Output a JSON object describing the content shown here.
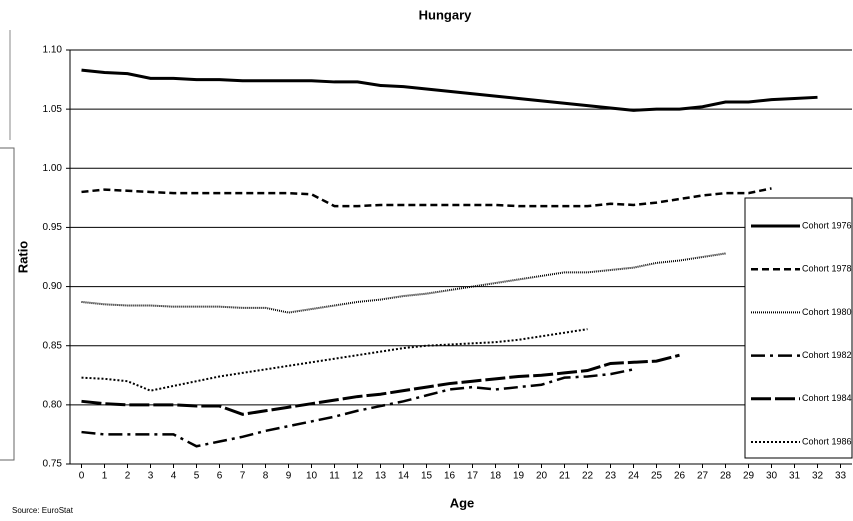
{
  "chart_data": {
    "type": "line",
    "title": "Hungary",
    "x_label": "Age",
    "y_label": "Ratio",
    "source": "Source: EuroStat",
    "x": [
      0,
      1,
      2,
      3,
      4,
      5,
      6,
      7,
      8,
      9,
      10,
      11,
      12,
      13,
      14,
      15,
      16,
      17,
      18,
      19,
      20,
      21,
      22,
      23,
      24,
      25,
      26,
      27,
      28,
      29,
      30,
      31,
      32,
      33
    ],
    "xlim": [
      -0.5,
      33.5
    ],
    "xticks": [
      0,
      1,
      2,
      3,
      4,
      5,
      6,
      7,
      8,
      9,
      10,
      11,
      12,
      13,
      14,
      15,
      16,
      17,
      18,
      19,
      20,
      21,
      22,
      23,
      24,
      25,
      26,
      27,
      28,
      29,
      30,
      31,
      32,
      33
    ],
    "ylim": [
      0.75,
      1.1
    ],
    "yticks": [
      {
        "value": 0.75,
        "label": "0.75"
      },
      {
        "value": 0.8,
        "label": "0.80"
      },
      {
        "value": 0.85,
        "label": "0.85"
      },
      {
        "value": 0.9,
        "label": "0.90"
      },
      {
        "value": 0.95,
        "label": "0.95"
      },
      {
        "value": 1.0,
        "label": "1.00"
      },
      {
        "value": 1.05,
        "label": "1.05"
      },
      {
        "value": 1.1,
        "label": "1.10"
      }
    ],
    "grid": true,
    "legend": "right",
    "series": [
      {
        "name": "Cohort 1976",
        "color": "#000000",
        "line_style": "solid-thick",
        "values": [
          1.083,
          1.081,
          1.08,
          1.076,
          1.076,
          1.075,
          1.075,
          1.074,
          1.074,
          1.074,
          1.074,
          1.073,
          1.073,
          1.07,
          1.069,
          1.067,
          1.065,
          1.063,
          1.061,
          1.059,
          1.057,
          1.055,
          1.053,
          1.051,
          1.049,
          1.05,
          1.05,
          1.052,
          1.056,
          1.056,
          1.058,
          1.059,
          1.06,
          null
        ]
      },
      {
        "name": "Cohort 1978",
        "color": "#000000",
        "line_style": "dash",
        "values": [
          0.98,
          0.982,
          0.981,
          0.98,
          0.979,
          0.979,
          0.979,
          0.979,
          0.979,
          0.979,
          0.978,
          0.968,
          0.968,
          0.969,
          0.969,
          0.969,
          0.969,
          0.969,
          0.969,
          0.968,
          0.968,
          0.968,
          0.968,
          0.97,
          0.969,
          0.971,
          0.974,
          0.977,
          0.979,
          0.979,
          0.983,
          null,
          null,
          null
        ]
      },
      {
        "name": "Cohort 1980",
        "color": "#000000",
        "line_style": "fine-dot",
        "values": [
          0.887,
          0.885,
          0.884,
          0.884,
          0.883,
          0.883,
          0.883,
          0.882,
          0.882,
          0.878,
          0.881,
          0.884,
          0.887,
          0.889,
          0.892,
          0.894,
          0.897,
          0.9,
          0.903,
          0.906,
          0.909,
          0.912,
          0.912,
          0.914,
          0.916,
          0.92,
          0.922,
          0.925,
          0.928,
          null,
          null,
          null,
          null,
          null
        ]
      },
      {
        "name": "Cohort 1982",
        "color": "#000000",
        "line_style": "dash-dot",
        "values": [
          0.777,
          0.775,
          0.775,
          0.775,
          0.775,
          0.765,
          0.769,
          0.773,
          0.778,
          0.782,
          0.786,
          0.79,
          0.795,
          0.799,
          0.803,
          0.808,
          0.813,
          0.815,
          0.813,
          0.815,
          0.817,
          0.823,
          0.824,
          0.826,
          0.83,
          null,
          null,
          null,
          null,
          null,
          null,
          null,
          null,
          null
        ]
      },
      {
        "name": "Cohort 1984",
        "color": "#000000",
        "line_style": "long-dash",
        "values": [
          0.803,
          0.801,
          0.8,
          0.8,
          0.8,
          0.799,
          0.799,
          0.792,
          0.795,
          0.798,
          0.801,
          0.804,
          0.807,
          0.809,
          0.812,
          0.815,
          0.818,
          0.82,
          0.822,
          0.824,
          0.825,
          0.827,
          0.829,
          0.835,
          0.836,
          0.837,
          0.842,
          null,
          null,
          null,
          null,
          null,
          null,
          null
        ]
      },
      {
        "name": "Cohort 1986",
        "color": "#000000",
        "line_style": "dot",
        "values": [
          0.823,
          0.822,
          0.82,
          0.812,
          0.816,
          0.82,
          0.824,
          0.827,
          0.83,
          0.833,
          0.836,
          0.839,
          0.842,
          0.845,
          0.848,
          0.85,
          0.851,
          0.852,
          0.853,
          0.855,
          0.858,
          0.861,
          0.864,
          null,
          null,
          null,
          null,
          null,
          null,
          null,
          null,
          null,
          null,
          null
        ]
      }
    ]
  }
}
